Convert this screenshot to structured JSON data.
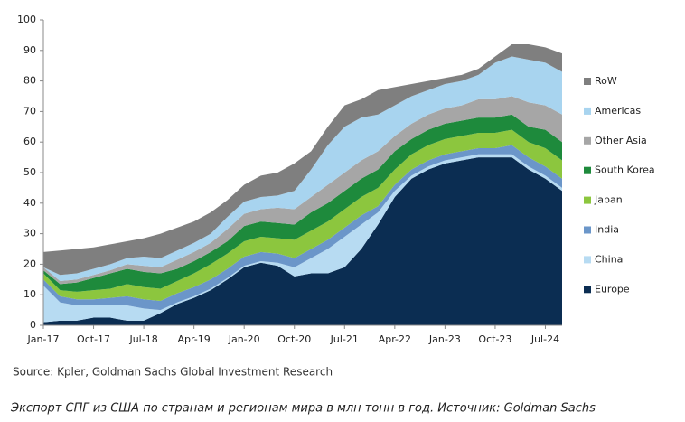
{
  "chart_data": {
    "type": "stacked_area",
    "source": "Source: Kpler, Goldman Sachs Global Investment Research",
    "caption": "Экспорт СПГ из США по странам и регионам мира в млн тонн в год. Источник: Goldman Sachs",
    "categories": [
      "Jan-17",
      null,
      null,
      "Oct-17",
      null,
      null,
      "Jul-18",
      null,
      null,
      "Apr-19",
      null,
      null,
      "Jan-20",
      null,
      null,
      "Oct-20",
      null,
      null,
      "Jul-21",
      null,
      null,
      "Apr-22",
      null,
      null,
      "Jan-23",
      null,
      null,
      "Oct-23",
      null,
      null,
      "Jul-24",
      null
    ],
    "ylim": [
      0,
      100
    ],
    "yticks": [
      0,
      10,
      20,
      30,
      40,
      50,
      60,
      70,
      80,
      90,
      100
    ],
    "series": [
      {
        "name": "Europe",
        "color": "#0b2d52",
        "values": [
          1,
          1.5,
          1.5,
          2.5,
          2.5,
          1.5,
          1.5,
          4,
          7,
          9,
          11.5,
          15,
          19,
          20.5,
          19.5,
          16,
          17,
          17,
          19,
          25,
          33,
          42,
          48,
          51,
          53,
          54,
          55,
          55,
          55,
          51,
          48,
          44
        ]
      },
      {
        "name": "China",
        "color": "#b7dbf2",
        "values": [
          12,
          6,
          5,
          4,
          4,
          5,
          4,
          1,
          0.5,
          0.5,
          0.5,
          0.5,
          0.5,
          0.5,
          1,
          3,
          5,
          8,
          10,
          8,
          4,
          2,
          1,
          1,
          1,
          1,
          1,
          1,
          1,
          1,
          1,
          1
        ]
      },
      {
        "name": "India",
        "color": "#6b96c9",
        "values": [
          2,
          2,
          2,
          2,
          2.5,
          3,
          3,
          3,
          3,
          3,
          3,
          3,
          3,
          3,
          3,
          3,
          3,
          3,
          3,
          3,
          2,
          2,
          2,
          2,
          2,
          2,
          2,
          2,
          3,
          3,
          3,
          3
        ]
      },
      {
        "name": "Japan",
        "color": "#8cc63e",
        "values": [
          2,
          2,
          2.5,
          3,
          3,
          4,
          4,
          4,
          4,
          4.5,
          5,
          5,
          5,
          5,
          5,
          6,
          6,
          6,
          6,
          6,
          6,
          5,
          5,
          5,
          5,
          5,
          5,
          5,
          5,
          5,
          6,
          6
        ]
      },
      {
        "name": "South Korea",
        "color": "#1e8a3c",
        "values": [
          1,
          2,
          3,
          4,
          5,
          5,
          5,
          5,
          4,
          4,
          4,
          4,
          5,
          5,
          5,
          5,
          6,
          6,
          6,
          6,
          6,
          6,
          5,
          5,
          5,
          5,
          5,
          5,
          5,
          5,
          6,
          6
        ]
      },
      {
        "name": "Other Asia",
        "color": "#a6a6a6",
        "values": [
          1,
          1,
          1,
          1,
          1,
          1.5,
          2,
          2,
          3,
          3,
          3,
          4,
          4,
          4,
          5,
          5,
          5,
          6,
          6,
          6,
          6,
          5,
          5,
          5,
          5,
          5,
          6,
          6,
          6,
          8,
          8,
          9
        ]
      },
      {
        "name": "Americas",
        "color": "#a8d4ef",
        "values": [
          0,
          2,
          2,
          2,
          2,
          2,
          3,
          3,
          3,
          3,
          3,
          4,
          4,
          4,
          4,
          6,
          9,
          13,
          15,
          14,
          12,
          10,
          9,
          8,
          8,
          8,
          8,
          12,
          13,
          14,
          14,
          14
        ]
      },
      {
        "name": "RoW",
        "color": "#7f7f7f",
        "values": [
          5,
          8,
          8,
          7,
          6.5,
          5.5,
          6,
          8,
          7.5,
          7,
          7,
          5.5,
          5.5,
          7,
          7.5,
          9,
          6,
          6,
          7,
          6,
          8,
          6,
          4,
          3,
          2,
          2,
          2,
          2,
          4,
          5,
          5,
          6
        ]
      }
    ]
  }
}
